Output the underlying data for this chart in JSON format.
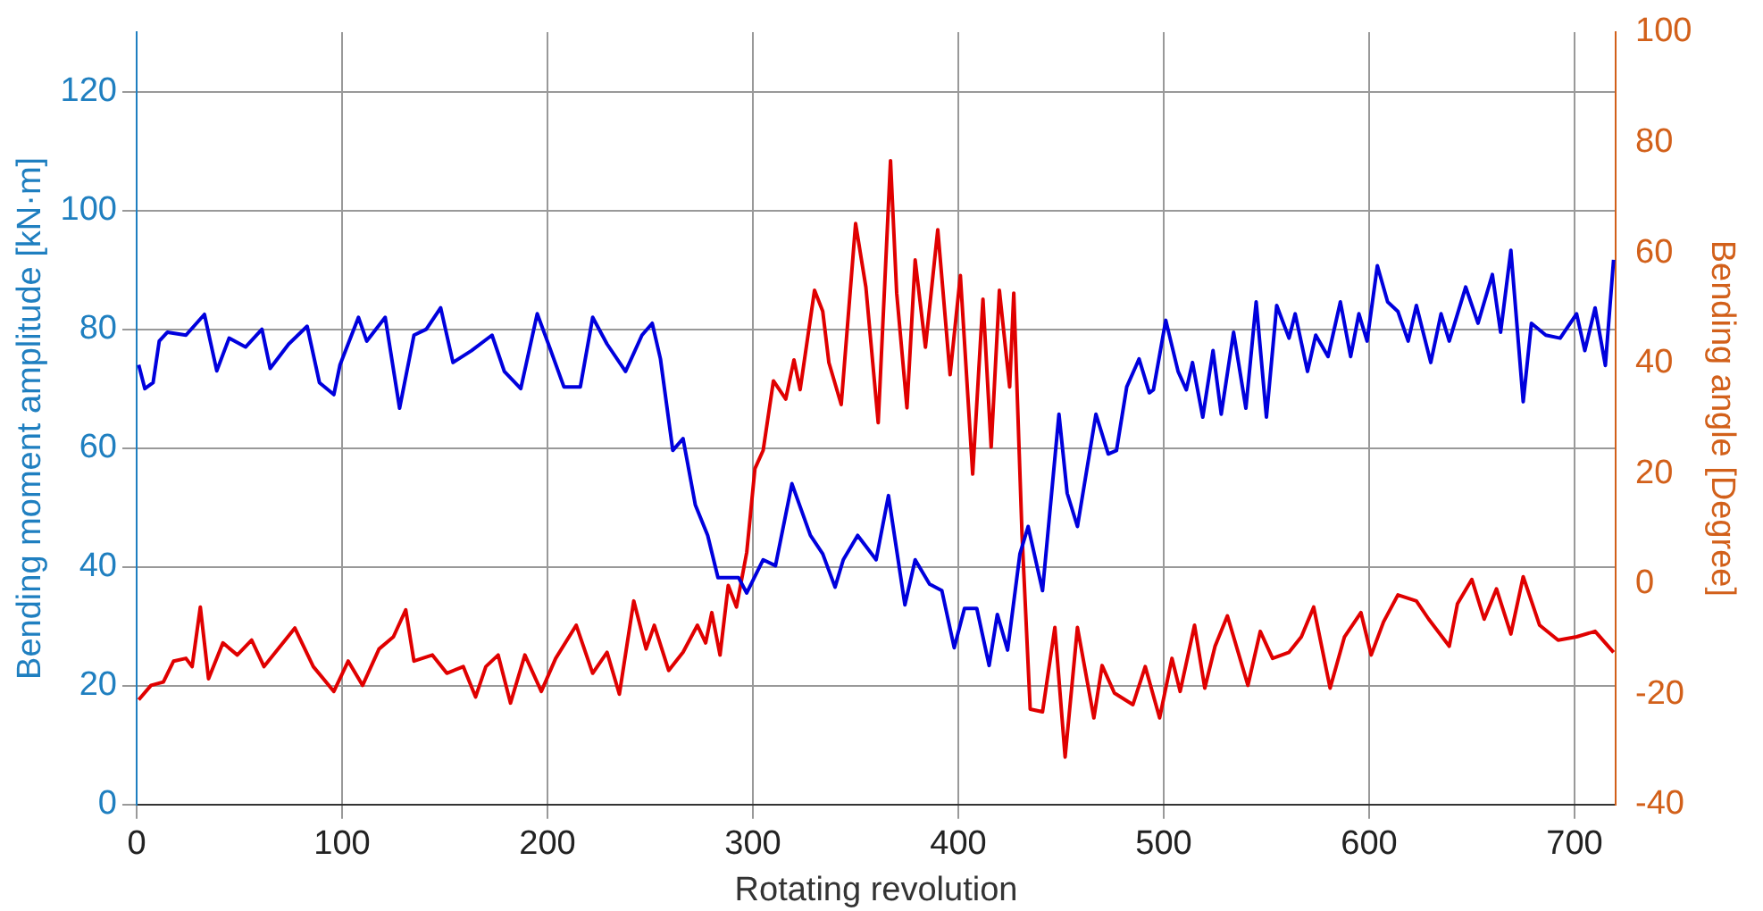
{
  "chart_data": {
    "type": "line",
    "xlabel": "Rotating revolution",
    "ylabel": "Bending moment amplitude [kN·m]",
    "y2label": "Bending angle [Degree]",
    "xlim": [
      0,
      720
    ],
    "xticks": [
      0,
      100,
      200,
      300,
      400,
      500,
      600,
      700
    ],
    "ylim": [
      0,
      130
    ],
    "yticks": [
      0,
      20,
      40,
      60,
      80,
      100,
      120
    ],
    "y2lim": [
      -40,
      100
    ],
    "y2ticks": [
      -40,
      -20,
      0,
      20,
      40,
      60,
      80,
      100
    ],
    "grid": true,
    "legend": false,
    "marker": "none",
    "line_style": "solid",
    "series": [
      {
        "color": "#0000dd",
        "x": [
          1,
          4,
          8,
          11,
          15,
          24,
          33,
          39,
          45,
          53,
          61,
          65,
          74,
          83,
          89,
          96,
          99,
          108,
          112,
          121,
          128,
          135,
          141,
          148,
          154,
          163,
          173,
          179,
          187,
          195,
          201,
          208,
          216,
          222,
          229,
          238,
          246,
          251,
          255,
          261,
          266,
          272,
          278,
          283,
          293,
          297,
          305,
          311,
          319,
          328,
          334,
          340,
          344,
          351,
          360,
          366,
          374,
          379,
          386,
          392,
          398,
          403,
          409,
          415,
          419,
          424,
          430,
          434,
          441,
          449,
          453,
          458,
          467,
          473,
          477,
          482,
          488,
          493,
          495,
          501,
          507,
          511,
          514,
          519,
          524,
          528,
          534,
          540,
          545,
          550,
          555,
          561,
          564,
          570,
          574,
          580,
          586,
          591,
          595,
          599,
          604,
          609,
          614,
          619,
          623,
          630,
          635,
          639,
          647,
          653,
          660,
          664,
          669,
          675,
          679,
          686,
          693,
          701,
          705,
          710,
          715,
          719
        ],
        "values": [
          74,
          70,
          71,
          78,
          79.5,
          79,
          82.5,
          73,
          78.5,
          77,
          80,
          73.4,
          77.5,
          80.5,
          71,
          69,
          74,
          82,
          78,
          82,
          66.7,
          79,
          80,
          83.6,
          74.4,
          76.4,
          79,
          72.9,
          70,
          82.6,
          77,
          70.3,
          70.3,
          82,
          77.5,
          72.9,
          79,
          81,
          75,
          59.6,
          61.6,
          50.4,
          45.3,
          38.2,
          38.2,
          35.6,
          41.2,
          40.2,
          54,
          45.3,
          42.2,
          36.6,
          41.2,
          45.3,
          41.2,
          52,
          33.6,
          41.2,
          37.1,
          36,
          26.4,
          33,
          33,
          23.4,
          32,
          26,
          42.2,
          46.8,
          36,
          65.7,
          52.4,
          46.8,
          65.7,
          59,
          59.6,
          70.3,
          75,
          69.3,
          69.8,
          81.5,
          72.9,
          69.8,
          74.4,
          65.2,
          76.4,
          65.7,
          79.5,
          66.7,
          84.6,
          65.2,
          84,
          78.5,
          82.6,
          72.9,
          79,
          75.4,
          84.6,
          75.4,
          82.6,
          78,
          90.7,
          84.6,
          83,
          78,
          84,
          74.4,
          82.6,
          78,
          87.1,
          81,
          89.2,
          79.5,
          93.3,
          67.8,
          81,
          79,
          78.5,
          82.6,
          76.4,
          83.6,
          73.9,
          91.7
        ]
      },
      {
        "color": "#e00000",
        "axis": "y2",
        "x": [
          1,
          7,
          13,
          18,
          24,
          27,
          31,
          35,
          42,
          49,
          56,
          62,
          77,
          86,
          96,
          103,
          110,
          118,
          125,
          131,
          135,
          144,
          151,
          159,
          165,
          170,
          176,
          182,
          189,
          197,
          204,
          214,
          222,
          229,
          235,
          242,
          248,
          252,
          259,
          266,
          273,
          277,
          280,
          284,
          288,
          292,
          297,
          301,
          305,
          310,
          316,
          320,
          323,
          330,
          334,
          337,
          343,
          350,
          355,
          361,
          367,
          370,
          375,
          379,
          384,
          390,
          396,
          401,
          407,
          412,
          416,
          420,
          425,
          427,
          431,
          435,
          441,
          447,
          452,
          458,
          466,
          470,
          476,
          485,
          491,
          498,
          504,
          508,
          515,
          520,
          525,
          531,
          541,
          547,
          553,
          561,
          567,
          573,
          581,
          588,
          596,
          601,
          607,
          614,
          623,
          629,
          639,
          643,
          650,
          656,
          662,
          669,
          675,
          683,
          692,
          701,
          710,
          719
        ],
        "values": [
          -21,
          -18.4,
          -17.8,
          -14,
          -13.5,
          -15,
          -4.2,
          -17.2,
          -10.7,
          -12.9,
          -10.2,
          -15,
          -8,
          -15,
          -19.5,
          -14,
          -18.4,
          -11.8,
          -9.6,
          -4.7,
          -14,
          -12.9,
          -16.2,
          -15,
          -20.5,
          -15,
          -12.9,
          -21.6,
          -12.9,
          -19.5,
          -13.5,
          -7.5,
          -16.2,
          -12.4,
          -20,
          -3.1,
          -11.8,
          -7.5,
          -15.7,
          -12.4,
          -7.5,
          -10.7,
          -5.2,
          -12.9,
          -0.3,
          -4.2,
          5.7,
          20.9,
          24.2,
          36.8,
          33.5,
          40.6,
          35.2,
          53.2,
          49.4,
          40.1,
          32.5,
          65.3,
          53.8,
          29.2,
          76.7,
          52.7,
          31.9,
          58.7,
          42.9,
          64.2,
          37.9,
          55.9,
          19.9,
          51.6,
          24.8,
          53.2,
          35.7,
          52.7,
          9.1,
          -22.7,
          -23.2,
          -7.9,
          -31.4,
          -7.9,
          -24.3,
          -14.8,
          -19.8,
          -21.9,
          -15,
          -24.3,
          -13.5,
          -19.5,
          -7.5,
          -18.9,
          -11.3,
          -5.8,
          -18.4,
          -8.6,
          -13.5,
          -12.4,
          -9.6,
          -4.2,
          -18.9,
          -9.6,
          -5.2,
          -12.9,
          -6.9,
          -2,
          -3.1,
          -6.4,
          -11.3,
          -3.6,
          0.8,
          -6.4,
          -0.9,
          -9.1,
          1.3,
          -7.5,
          -10.2,
          -9.6,
          -8.6,
          -12.4
        ]
      }
    ]
  }
}
